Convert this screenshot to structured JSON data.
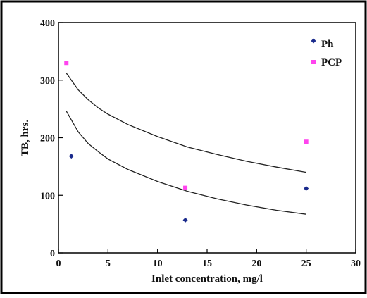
{
  "chart_data": {
    "type": "scatter",
    "xlabel": "Inlet concentration, mg/l",
    "ylabel": "TB, hrs.",
    "xlim": [
      0,
      30
    ],
    "ylim": [
      0,
      400
    ],
    "x_ticks": [
      0,
      5,
      10,
      15,
      20,
      25,
      30
    ],
    "y_ticks": [
      0,
      100,
      200,
      300,
      400
    ],
    "grid": false,
    "legend_position": "top-right",
    "series": [
      {
        "name": "Ph",
        "marker": "diamond",
        "color": "#1a2a8c",
        "points": [
          {
            "x": 1.3,
            "y": 168
          },
          {
            "x": 12.8,
            "y": 57
          },
          {
            "x": 25.0,
            "y": 112
          }
        ]
      },
      {
        "name": "PCP",
        "marker": "square",
        "color": "#ff44ee",
        "points": [
          {
            "x": 0.8,
            "y": 330
          },
          {
            "x": 12.8,
            "y": 113
          },
          {
            "x": 25.0,
            "y": 193
          }
        ]
      }
    ],
    "fit_curves": [
      {
        "color": "#222222",
        "points": [
          [
            0.8,
            312
          ],
          [
            2,
            283
          ],
          [
            3,
            266
          ],
          [
            4,
            252
          ],
          [
            5,
            241
          ],
          [
            7,
            223
          ],
          [
            10,
            202
          ],
          [
            13,
            184
          ],
          [
            16,
            171
          ],
          [
            19,
            159
          ],
          [
            22,
            149
          ],
          [
            25,
            140
          ]
        ]
      },
      {
        "color": "#222222",
        "points": [
          [
            0.8,
            246
          ],
          [
            2,
            210
          ],
          [
            3,
            190
          ],
          [
            4,
            176
          ],
          [
            5,
            163
          ],
          [
            7,
            145
          ],
          [
            10,
            124
          ],
          [
            13,
            107
          ],
          [
            16,
            94
          ],
          [
            19,
            83
          ],
          [
            22,
            74
          ],
          [
            25,
            67
          ]
        ]
      }
    ]
  }
}
